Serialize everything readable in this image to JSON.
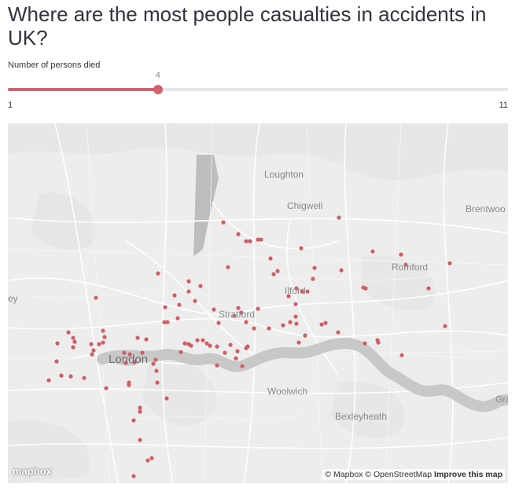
{
  "title": "Where are the most people casualties in accidents in UK?",
  "slider": {
    "label": "Number of persons died",
    "min": 1,
    "max": 11,
    "value": 4,
    "min_label": "1",
    "max_label": "11",
    "value_label": "4",
    "accent": "#d0636b"
  },
  "map": {
    "places": {
      "loughton": "Loughton",
      "chigwell": "Chigwell",
      "brentwood": "Brentwoo",
      "romford": "Romford",
      "ilford": "Ilford",
      "stratford": "Stratford",
      "london": "London",
      "woolwich": "Woolwich",
      "bexleyheath": "Bexleyheath",
      "gravesend": "Gra",
      "west_edge": "ey"
    },
    "logo": "mapbox",
    "attribution": "© Mapbox © OpenStreetMap",
    "improve_link": "Improve this map",
    "point_color": "#cf5f66",
    "water_color": "#c8c8c8"
  }
}
